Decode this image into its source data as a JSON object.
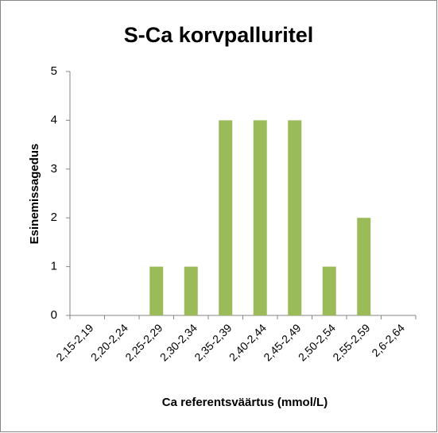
{
  "chart_data": {
    "type": "bar",
    "title": "S-Ca korvpalluritel",
    "x_label": "Ca referentsväärtus (mmol/L)",
    "y_label": "Esinemissagedus",
    "categories": [
      "2,15-2,19",
      "2,20-2,24",
      "2,25-2,29",
      "2,30-2,34",
      "2,35-2,39",
      "2,40-2,44",
      "2,45-2,49",
      "2,50-2,54",
      "2,55-2,59",
      "2,6-2,64"
    ],
    "values": [
      0,
      0,
      1,
      1,
      4,
      4,
      4,
      1,
      2,
      0
    ],
    "color": "#9bbb59",
    "ylim": [
      0,
      5
    ],
    "yticks": [
      0,
      1,
      2,
      3,
      4,
      5
    ],
    "grid": false
  }
}
